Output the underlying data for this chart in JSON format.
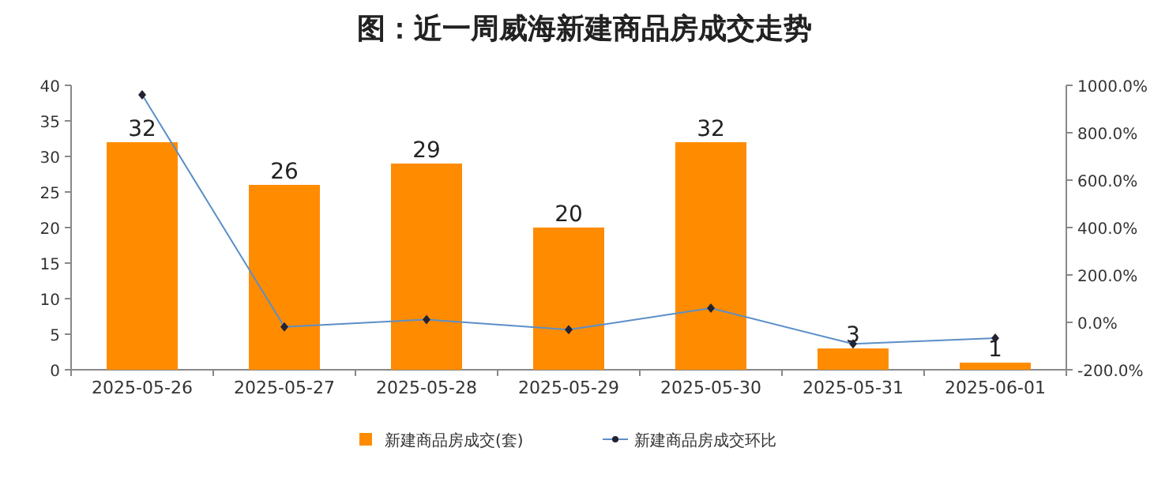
{
  "chart_data": {
    "type": "bar",
    "title": "图：近一周威海新建商品房成交走势",
    "categories": [
      "2025-05-26",
      "2025-05-27",
      "2025-05-28",
      "2025-05-29",
      "2025-05-30",
      "2025-05-31",
      "2025-06-01"
    ],
    "series": [
      {
        "name": "新建商品房成交(套)",
        "color": "#ff8c00",
        "values": [
          32,
          26,
          29,
          20,
          32,
          3,
          1
        ],
        "value_labels": [
          "32",
          "26",
          "29",
          "20",
          "32",
          "3",
          "1"
        ]
      },
      {
        "name": "新建商品房成交环比",
        "type": "line",
        "axis": "y2",
        "color": "#5b8fc7",
        "marker": "diamond",
        "values": [
          960,
          -19,
          12,
          -31,
          60,
          -91,
          -67
        ]
      }
    ],
    "ylim": [
      0,
      40
    ],
    "yticks": [
      0,
      5,
      10,
      15,
      20,
      25,
      30,
      35,
      40
    ],
    "y2lim": [
      -200,
      1000
    ],
    "y2ticks": [
      {
        "value": -200,
        "label": "-200.0%"
      },
      {
        "value": 0,
        "label": "0.0%"
      },
      {
        "value": 200,
        "label": "200.0%"
      },
      {
        "value": 400,
        "label": "400.0%"
      },
      {
        "value": 600,
        "label": "600.0%"
      },
      {
        "value": 800,
        "label": "800.0%"
      },
      {
        "value": 1000,
        "label": "1000.0%"
      }
    ],
    "legend": "bottom"
  }
}
